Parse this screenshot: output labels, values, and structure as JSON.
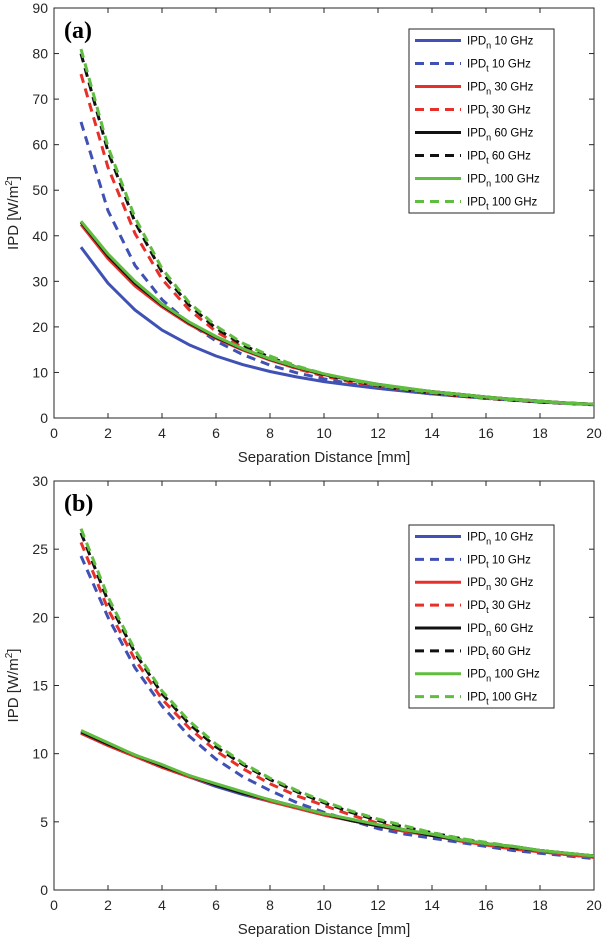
{
  "chart_data": [
    {
      "type": "line",
      "panel_label": "(a)",
      "xlabel": "Separation Distance [mm]",
      "ylabel": {
        "base": "IPD [W/m",
        "sup": "2",
        "end": "]"
      },
      "xlim": [
        0,
        20
      ],
      "ylim": [
        0,
        90
      ],
      "xticks": [
        0,
        2,
        4,
        6,
        8,
        10,
        12,
        14,
        16,
        18,
        20
      ],
      "yticks": [
        0,
        10,
        20,
        30,
        40,
        50,
        60,
        70,
        80,
        90
      ],
      "x": [
        1,
        2,
        3,
        4,
        5,
        6,
        7,
        8,
        9,
        10,
        11,
        12,
        13,
        14,
        15,
        16,
        17,
        18,
        19,
        20
      ],
      "series": [
        {
          "name": "IPDn 10 GHz",
          "sub": "n",
          "freq": "10 GHz",
          "color": "#3f51b5",
          "dash": false,
          "values": [
            37.5,
            29.6,
            23.7,
            19.3,
            16.1,
            13.6,
            11.7,
            10.2,
            9.0,
            8.0,
            7.2,
            6.5,
            5.9,
            5.3,
            4.8,
            4.4,
            4.0,
            3.6,
            3.3,
            3.0
          ]
        },
        {
          "name": "IPDt 10 GHz",
          "sub": "t",
          "freq": "10 GHz",
          "color": "#3f51b5",
          "dash": true,
          "values": [
            65.0,
            45.5,
            33.5,
            26.0,
            20.8,
            16.9,
            13.9,
            11.6,
            9.9,
            8.6,
            7.5,
            6.6,
            5.9,
            5.3,
            4.8,
            4.3,
            3.9,
            3.5,
            3.2,
            2.9
          ]
        },
        {
          "name": "IPDn 30 GHz",
          "sub": "n",
          "freq": "30 GHz",
          "color": "#e8302a",
          "dash": false,
          "values": [
            42.5,
            35.0,
            29.0,
            24.4,
            20.6,
            17.5,
            14.9,
            12.7,
            10.9,
            9.5,
            8.3,
            7.3,
            6.5,
            5.8,
            5.2,
            4.6,
            4.1,
            3.7,
            3.3,
            3.0
          ]
        },
        {
          "name": "IPDt 30 GHz",
          "sub": "t",
          "freq": "30 GHz",
          "color": "#e8302a",
          "dash": true,
          "values": [
            75.5,
            55.0,
            40.5,
            30.5,
            23.8,
            19.0,
            15.4,
            12.8,
            10.8,
            9.2,
            7.9,
            6.9,
            6.1,
            5.4,
            4.8,
            4.3,
            3.9,
            3.5,
            3.2,
            2.9
          ]
        },
        {
          "name": "IPDn 60 GHz",
          "sub": "n",
          "freq": "60 GHz",
          "color": "#111111",
          "dash": false,
          "values": [
            43.0,
            35.6,
            29.6,
            24.8,
            20.9,
            17.7,
            15.1,
            12.9,
            11.1,
            9.6,
            8.4,
            7.4,
            6.5,
            5.8,
            5.2,
            4.6,
            4.1,
            3.7,
            3.3,
            3.0
          ]
        },
        {
          "name": "IPDt 60 GHz",
          "sub": "t",
          "freq": "60 GHz",
          "color": "#111111",
          "dash": true,
          "values": [
            80.0,
            58.5,
            43.0,
            32.0,
            24.8,
            19.7,
            16.0,
            13.3,
            11.2,
            9.5,
            8.2,
            7.1,
            6.2,
            5.5,
            4.9,
            4.4,
            3.9,
            3.5,
            3.2,
            2.9
          ]
        },
        {
          "name": "IPDn 100 GHz",
          "sub": "n",
          "freq": "100 GHz",
          "color": "#5fbd3f",
          "dash": false,
          "values": [
            43.2,
            36.0,
            30.0,
            25.0,
            21.1,
            17.9,
            15.2,
            13.0,
            11.2,
            9.7,
            8.5,
            7.4,
            6.6,
            5.8,
            5.2,
            4.6,
            4.1,
            3.7,
            3.3,
            3.0
          ]
        },
        {
          "name": "IPDt 100 GHz",
          "sub": "t",
          "freq": "100 GHz",
          "color": "#5fbd3f",
          "dash": true,
          "values": [
            81.0,
            59.5,
            44.0,
            32.8,
            25.4,
            20.2,
            16.4,
            13.6,
            11.4,
            9.7,
            8.3,
            7.2,
            6.3,
            5.6,
            5.0,
            4.4,
            4.0,
            3.6,
            3.2,
            2.9
          ]
        }
      ],
      "legend": {
        "position": "top-right"
      }
    },
    {
      "type": "line",
      "panel_label": "(b)",
      "xlabel": "Separation Distance [mm]",
      "ylabel": {
        "base": "IPD [W/m",
        "sup": "2",
        "end": "]"
      },
      "xlim": [
        0,
        20
      ],
      "ylim": [
        0,
        30
      ],
      "xticks": [
        0,
        2,
        4,
        6,
        8,
        10,
        12,
        14,
        16,
        18,
        20
      ],
      "yticks": [
        0,
        5,
        10,
        15,
        20,
        25,
        30
      ],
      "x": [
        1,
        2,
        3,
        4,
        5,
        6,
        7,
        8,
        9,
        10,
        11,
        12,
        13,
        14,
        15,
        16,
        17,
        18,
        19,
        20
      ],
      "series": [
        {
          "name": "IPDn 10 GHz",
          "sub": "n",
          "freq": "10 GHz",
          "color": "#3f51b5",
          "dash": false,
          "values": [
            11.5,
            10.6,
            9.8,
            9.0,
            8.3,
            7.6,
            7.0,
            6.5,
            6.0,
            5.5,
            5.1,
            4.7,
            4.3,
            4.0,
            3.7,
            3.4,
            3.1,
            2.9,
            2.6,
            2.4
          ]
        },
        {
          "name": "IPDt 10 GHz",
          "sub": "t",
          "freq": "10 GHz",
          "color": "#3f51b5",
          "dash": true,
          "values": [
            24.5,
            20.0,
            16.3,
            13.5,
            11.3,
            9.6,
            8.3,
            7.3,
            6.4,
            5.7,
            5.1,
            4.5,
            4.1,
            3.8,
            3.5,
            3.2,
            2.9,
            2.7,
            2.5,
            2.3
          ]
        },
        {
          "name": "IPDn 30 GHz",
          "sub": "n",
          "freq": "30 GHz",
          "color": "#e8302a",
          "dash": false,
          "values": [
            11.5,
            10.6,
            9.8,
            9.0,
            8.3,
            7.7,
            7.1,
            6.5,
            6.0,
            5.5,
            5.1,
            4.7,
            4.3,
            4.0,
            3.7,
            3.4,
            3.1,
            2.9,
            2.6,
            2.4
          ]
        },
        {
          "name": "IPDt 30 GHz",
          "sub": "t",
          "freq": "30 GHz",
          "color": "#e8302a",
          "dash": true,
          "values": [
            25.5,
            20.6,
            16.9,
            14.0,
            11.9,
            10.2,
            8.9,
            7.8,
            6.9,
            6.2,
            5.5,
            4.9,
            4.4,
            4.0,
            3.6,
            3.3,
            3.0,
            2.8,
            2.6,
            2.4
          ]
        },
        {
          "name": "IPDn 60 GHz",
          "sub": "n",
          "freq": "60 GHz",
          "color": "#111111",
          "dash": false,
          "values": [
            11.6,
            10.7,
            9.9,
            9.1,
            8.4,
            7.7,
            7.1,
            6.6,
            6.1,
            5.6,
            5.1,
            4.7,
            4.4,
            4.0,
            3.7,
            3.4,
            3.2,
            2.9,
            2.7,
            2.5
          ]
        },
        {
          "name": "IPDt 60 GHz",
          "sub": "t",
          "freq": "60 GHz",
          "color": "#111111",
          "dash": true,
          "values": [
            26.2,
            21.2,
            17.4,
            14.4,
            12.2,
            10.5,
            9.2,
            8.1,
            7.2,
            6.4,
            5.7,
            5.1,
            4.6,
            4.2,
            3.8,
            3.4,
            3.1,
            2.9,
            2.7,
            2.5
          ]
        },
        {
          "name": "IPDn 100 GHz",
          "sub": "n",
          "freq": "100 GHz",
          "color": "#5fbd3f",
          "dash": false,
          "values": [
            11.7,
            10.8,
            9.9,
            9.2,
            8.4,
            7.8,
            7.2,
            6.6,
            6.1,
            5.6,
            5.2,
            4.8,
            4.4,
            4.1,
            3.7,
            3.4,
            3.2,
            2.9,
            2.7,
            2.5
          ]
        },
        {
          "name": "IPDt 100 GHz",
          "sub": "t",
          "freq": "100 GHz",
          "color": "#5fbd3f",
          "dash": true,
          "values": [
            26.5,
            21.5,
            17.6,
            14.6,
            12.4,
            10.7,
            9.3,
            8.2,
            7.3,
            6.5,
            5.8,
            5.2,
            4.7,
            4.2,
            3.8,
            3.5,
            3.2,
            2.9,
            2.7,
            2.5
          ]
        }
      ],
      "legend": {
        "position": "top-right"
      }
    }
  ]
}
